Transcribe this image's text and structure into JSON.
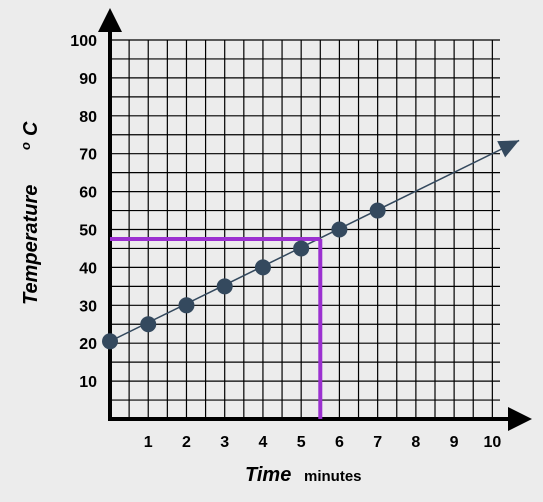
{
  "chart_data": {
    "type": "scatter",
    "x_ticks": [
      "1",
      "2",
      "3",
      "4",
      "5",
      "6",
      "7",
      "8",
      "9",
      "10"
    ],
    "y_ticks": [
      "10",
      "20",
      "30",
      "40",
      "50",
      "60",
      "70",
      "80",
      "90",
      "100"
    ],
    "xlim": [
      0,
      10.2
    ],
    "ylim": [
      0,
      100
    ],
    "x_minor_step": 0.5,
    "y_minor_step": 5,
    "grid": true,
    "ylabel": "Temperature",
    "ylabel_unit_superscript": "o",
    "ylabel_unit": "C",
    "xlabel": "Time",
    "xlabel_unit": "minutes",
    "points": [
      {
        "x": 0,
        "y": 20.5
      },
      {
        "x": 1,
        "y": 25
      },
      {
        "x": 2,
        "y": 30
      },
      {
        "x": 3,
        "y": 35
      },
      {
        "x": 4,
        "y": 40
      },
      {
        "x": 5,
        "y": 45
      },
      {
        "x": 6,
        "y": 50
      },
      {
        "x": 7,
        "y": 55
      }
    ],
    "trend_line": {
      "x1": 0,
      "y1": 20.5,
      "x2": 10.7,
      "y2": 73.5
    },
    "guide": {
      "x": 5.5,
      "y": 47.5
    },
    "colors": {
      "points": "#34495e",
      "trend": "#34495e",
      "guide": "#9b30d0",
      "grid": "#000000",
      "background": "#ececec"
    }
  }
}
